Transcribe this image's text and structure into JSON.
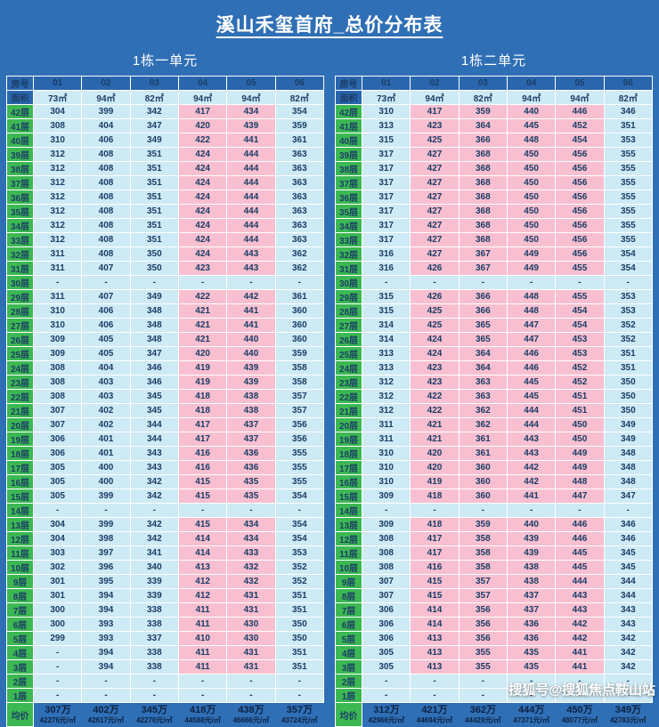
{
  "title": "溪山禾玺首府_总价分布表",
  "watermark": "搜狐号@搜狐焦点鞍山站",
  "labels": {
    "room": "房号",
    "area": "面积",
    "avg": "均价"
  },
  "colors": {
    "background": "#2f6fb6",
    "header_cell": "#2a66ad",
    "green": "#3cb853",
    "cyan": "#cdeaf5",
    "pink": "#f7bfd0",
    "text_dark": "#1b3d66",
    "avg_text": "#0d2240"
  },
  "tables": [
    {
      "unit_title": "1栋一单元",
      "room_numbers": [
        "01",
        "02",
        "03",
        "04",
        "05",
        "06"
      ],
      "areas": [
        "73㎡",
        "94㎡",
        "82㎡",
        "94㎡",
        "94㎡",
        "82㎡"
      ],
      "column_styles": [
        "cyan",
        "cyan",
        "cyan",
        "pink",
        "pink",
        "cyan"
      ],
      "floors": [
        {
          "floor": "42层",
          "values": [
            "304",
            "399",
            "342",
            "417",
            "434",
            "354"
          ]
        },
        {
          "floor": "41层",
          "values": [
            "308",
            "404",
            "347",
            "420",
            "439",
            "359"
          ]
        },
        {
          "floor": "40层",
          "values": [
            "310",
            "406",
            "349",
            "422",
            "441",
            "361"
          ]
        },
        {
          "floor": "39层",
          "values": [
            "312",
            "408",
            "351",
            "424",
            "444",
            "363"
          ]
        },
        {
          "floor": "38层",
          "values": [
            "312",
            "408",
            "351",
            "424",
            "444",
            "363"
          ]
        },
        {
          "floor": "37层",
          "values": [
            "312",
            "408",
            "351",
            "424",
            "444",
            "363"
          ]
        },
        {
          "floor": "36层",
          "values": [
            "312",
            "408",
            "351",
            "424",
            "444",
            "363"
          ]
        },
        {
          "floor": "35层",
          "values": [
            "312",
            "408",
            "351",
            "424",
            "444",
            "363"
          ]
        },
        {
          "floor": "34层",
          "values": [
            "312",
            "408",
            "351",
            "424",
            "444",
            "363"
          ]
        },
        {
          "floor": "33层",
          "values": [
            "312",
            "408",
            "351",
            "424",
            "444",
            "363"
          ]
        },
        {
          "floor": "32层",
          "values": [
            "311",
            "408",
            "350",
            "424",
            "443",
            "362"
          ]
        },
        {
          "floor": "31层",
          "values": [
            "311",
            "407",
            "350",
            "423",
            "443",
            "362"
          ]
        },
        {
          "floor": "30层",
          "values": [
            "-",
            "-",
            "-",
            "-",
            "-",
            "-"
          ]
        },
        {
          "floor": "29层",
          "values": [
            "311",
            "407",
            "349",
            "422",
            "442",
            "361"
          ]
        },
        {
          "floor": "28层",
          "values": [
            "310",
            "406",
            "348",
            "421",
            "441",
            "360"
          ]
        },
        {
          "floor": "27层",
          "values": [
            "310",
            "406",
            "348",
            "421",
            "441",
            "360"
          ]
        },
        {
          "floor": "26层",
          "values": [
            "309",
            "405",
            "348",
            "421",
            "440",
            "360"
          ]
        },
        {
          "floor": "25层",
          "values": [
            "309",
            "405",
            "347",
            "420",
            "440",
            "359"
          ]
        },
        {
          "floor": "24层",
          "values": [
            "308",
            "404",
            "346",
            "419",
            "439",
            "358"
          ]
        },
        {
          "floor": "23层",
          "values": [
            "308",
            "403",
            "346",
            "419",
            "439",
            "358"
          ]
        },
        {
          "floor": "22层",
          "values": [
            "308",
            "403",
            "345",
            "418",
            "438",
            "357"
          ]
        },
        {
          "floor": "21层",
          "values": [
            "307",
            "402",
            "345",
            "418",
            "438",
            "357"
          ]
        },
        {
          "floor": "20层",
          "values": [
            "307",
            "402",
            "344",
            "417",
            "437",
            "356"
          ]
        },
        {
          "floor": "19层",
          "values": [
            "306",
            "401",
            "344",
            "417",
            "437",
            "356"
          ]
        },
        {
          "floor": "18层",
          "values": [
            "306",
            "401",
            "343",
            "416",
            "436",
            "355"
          ]
        },
        {
          "floor": "17层",
          "values": [
            "305",
            "400",
            "343",
            "416",
            "436",
            "355"
          ]
        },
        {
          "floor": "16层",
          "values": [
            "305",
            "400",
            "342",
            "415",
            "435",
            "355"
          ]
        },
        {
          "floor": "15层",
          "values": [
            "305",
            "399",
            "342",
            "415",
            "435",
            "354"
          ]
        },
        {
          "floor": "14层",
          "values": [
            "-",
            "-",
            "-",
            "-",
            "-",
            "-"
          ]
        },
        {
          "floor": "13层",
          "values": [
            "304",
            "399",
            "342",
            "415",
            "434",
            "354"
          ]
        },
        {
          "floor": "12层",
          "values": [
            "304",
            "398",
            "342",
            "414",
            "434",
            "354"
          ]
        },
        {
          "floor": "11层",
          "values": [
            "303",
            "397",
            "341",
            "414",
            "433",
            "353"
          ]
        },
        {
          "floor": "10层",
          "values": [
            "302",
            "396",
            "340",
            "413",
            "432",
            "352"
          ]
        },
        {
          "floor": "9层",
          "values": [
            "301",
            "395",
            "339",
            "412",
            "432",
            "352"
          ]
        },
        {
          "floor": "8层",
          "values": [
            "301",
            "394",
            "339",
            "412",
            "431",
            "351"
          ]
        },
        {
          "floor": "7层",
          "values": [
            "300",
            "394",
            "338",
            "411",
            "431",
            "351"
          ]
        },
        {
          "floor": "6层",
          "values": [
            "300",
            "393",
            "338",
            "411",
            "430",
            "350"
          ]
        },
        {
          "floor": "5层",
          "values": [
            "299",
            "393",
            "337",
            "410",
            "430",
            "350"
          ]
        },
        {
          "floor": "4层",
          "values": [
            "-",
            "394",
            "338",
            "411",
            "431",
            "351"
          ]
        },
        {
          "floor": "3层",
          "values": [
            "-",
            "394",
            "338",
            "411",
            "431",
            "351"
          ]
        },
        {
          "floor": "2层",
          "values": [
            "-",
            "-",
            "-",
            "-",
            "-",
            "-"
          ]
        },
        {
          "floor": "1层",
          "values": [
            "-",
            "-",
            "-",
            "-",
            "-",
            "-"
          ]
        }
      ],
      "avg": [
        {
          "total": "307万",
          "unit": "42276元/㎡"
        },
        {
          "total": "402万",
          "unit": "42617元/㎡"
        },
        {
          "total": "345万",
          "unit": "42270元/㎡"
        },
        {
          "total": "418万",
          "unit": "44588元/㎡"
        },
        {
          "total": "438万",
          "unit": "46666元/㎡"
        },
        {
          "total": "357万",
          "unit": "43724元/㎡"
        }
      ]
    },
    {
      "unit_title": "1栋二单元",
      "room_numbers": [
        "01",
        "02",
        "03",
        "04",
        "05",
        "06"
      ],
      "areas": [
        "73㎡",
        "94㎡",
        "82㎡",
        "94㎡",
        "94㎡",
        "82㎡"
      ],
      "column_styles": [
        "cyan",
        "pink",
        "pink",
        "pink",
        "pink",
        "cyan"
      ],
      "floors": [
        {
          "floor": "42层",
          "values": [
            "310",
            "417",
            "359",
            "440",
            "446",
            "346"
          ]
        },
        {
          "floor": "41层",
          "values": [
            "313",
            "423",
            "364",
            "445",
            "452",
            "351"
          ]
        },
        {
          "floor": "40层",
          "values": [
            "315",
            "425",
            "366",
            "448",
            "454",
            "353"
          ]
        },
        {
          "floor": "39层",
          "values": [
            "317",
            "427",
            "368",
            "450",
            "456",
            "355"
          ]
        },
        {
          "floor": "38层",
          "values": [
            "317",
            "427",
            "368",
            "450",
            "456",
            "355"
          ]
        },
        {
          "floor": "37层",
          "values": [
            "317",
            "427",
            "368",
            "450",
            "456",
            "355"
          ]
        },
        {
          "floor": "36层",
          "values": [
            "317",
            "427",
            "368",
            "450",
            "456",
            "355"
          ]
        },
        {
          "floor": "35层",
          "values": [
            "317",
            "427",
            "368",
            "450",
            "456",
            "355"
          ]
        },
        {
          "floor": "34层",
          "values": [
            "317",
            "427",
            "368",
            "450",
            "456",
            "355"
          ]
        },
        {
          "floor": "33层",
          "values": [
            "317",
            "427",
            "368",
            "450",
            "456",
            "355"
          ]
        },
        {
          "floor": "32层",
          "values": [
            "316",
            "427",
            "367",
            "449",
            "456",
            "354"
          ]
        },
        {
          "floor": "31层",
          "values": [
            "316",
            "426",
            "367",
            "449",
            "455",
            "354"
          ]
        },
        {
          "floor": "30层",
          "values": [
            "-",
            "-",
            "-",
            "-",
            "-",
            "-"
          ]
        },
        {
          "floor": "29层",
          "values": [
            "315",
            "426",
            "366",
            "448",
            "455",
            "353"
          ]
        },
        {
          "floor": "28层",
          "values": [
            "315",
            "425",
            "366",
            "448",
            "454",
            "353"
          ]
        },
        {
          "floor": "27层",
          "values": [
            "314",
            "425",
            "365",
            "447",
            "454",
            "352"
          ]
        },
        {
          "floor": "26层",
          "values": [
            "314",
            "424",
            "365",
            "447",
            "453",
            "352"
          ]
        },
        {
          "floor": "25层",
          "values": [
            "313",
            "424",
            "364",
            "446",
            "453",
            "351"
          ]
        },
        {
          "floor": "24层",
          "values": [
            "313",
            "423",
            "364",
            "446",
            "452",
            "351"
          ]
        },
        {
          "floor": "23层",
          "values": [
            "312",
            "423",
            "363",
            "445",
            "452",
            "350"
          ]
        },
        {
          "floor": "22层",
          "values": [
            "312",
            "422",
            "363",
            "445",
            "451",
            "350"
          ]
        },
        {
          "floor": "21层",
          "values": [
            "312",
            "422",
            "362",
            "444",
            "451",
            "350"
          ]
        },
        {
          "floor": "20层",
          "values": [
            "311",
            "421",
            "362",
            "444",
            "450",
            "349"
          ]
        },
        {
          "floor": "19层",
          "values": [
            "311",
            "421",
            "361",
            "443",
            "450",
            "349"
          ]
        },
        {
          "floor": "18层",
          "values": [
            "310",
            "420",
            "361",
            "443",
            "449",
            "348"
          ]
        },
        {
          "floor": "17层",
          "values": [
            "310",
            "420",
            "360",
            "442",
            "449",
            "348"
          ]
        },
        {
          "floor": "16层",
          "values": [
            "310",
            "419",
            "360",
            "442",
            "448",
            "348"
          ]
        },
        {
          "floor": "15层",
          "values": [
            "309",
            "418",
            "360",
            "441",
            "447",
            "347"
          ]
        },
        {
          "floor": "14层",
          "values": [
            "-",
            "-",
            "-",
            "-",
            "-",
            "-"
          ]
        },
        {
          "floor": "13层",
          "values": [
            "309",
            "418",
            "359",
            "440",
            "446",
            "346"
          ]
        },
        {
          "floor": "12层",
          "values": [
            "308",
            "417",
            "358",
            "439",
            "446",
            "346"
          ]
        },
        {
          "floor": "11层",
          "values": [
            "308",
            "417",
            "358",
            "439",
            "445",
            "345"
          ]
        },
        {
          "floor": "10层",
          "values": [
            "308",
            "416",
            "358",
            "438",
            "445",
            "345"
          ]
        },
        {
          "floor": "9层",
          "values": [
            "307",
            "415",
            "357",
            "438",
            "444",
            "344"
          ]
        },
        {
          "floor": "8层",
          "values": [
            "307",
            "415",
            "357",
            "437",
            "443",
            "344"
          ]
        },
        {
          "floor": "7层",
          "values": [
            "306",
            "414",
            "356",
            "437",
            "443",
            "343"
          ]
        },
        {
          "floor": "6层",
          "values": [
            "306",
            "414",
            "356",
            "436",
            "442",
            "343"
          ]
        },
        {
          "floor": "5层",
          "values": [
            "306",
            "413",
            "356",
            "436",
            "442",
            "342"
          ]
        },
        {
          "floor": "4层",
          "values": [
            "305",
            "413",
            "355",
            "435",
            "441",
            "342"
          ]
        },
        {
          "floor": "3层",
          "values": [
            "305",
            "413",
            "355",
            "435",
            "441",
            "342"
          ]
        },
        {
          "floor": "2层",
          "values": [
            "-",
            "-",
            "-",
            "-",
            "-",
            "-"
          ]
        },
        {
          "floor": "1层",
          "values": [
            "-",
            "-",
            "-",
            "-",
            "-",
            "-"
          ]
        }
      ],
      "avg": [
        {
          "total": "312万",
          "unit": "42966元/㎡"
        },
        {
          "total": "421万",
          "unit": "44694元/㎡"
        },
        {
          "total": "362万",
          "unit": "44429元/㎡"
        },
        {
          "total": "444万",
          "unit": "47371元/㎡"
        },
        {
          "total": "450万",
          "unit": "48077元/㎡"
        },
        {
          "total": "349万",
          "unit": "42783元/㎡"
        }
      ]
    }
  ]
}
